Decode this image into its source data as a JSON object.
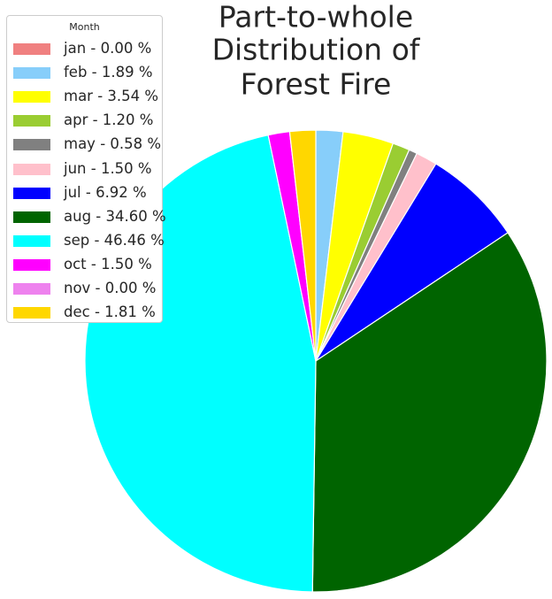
{
  "chart_data": {
    "type": "pie",
    "title_lines": [
      "Part-to-whole",
      "Distribution of",
      "Forest Fire"
    ],
    "legend": {
      "title": "Month",
      "placement": "top-left"
    },
    "start_angle_deg": 90,
    "direction": "clockwise",
    "slices": [
      {
        "label": "jan",
        "value": 0.0,
        "color": "#f08080",
        "legend_text": "jan - 0.00 %"
      },
      {
        "label": "feb",
        "value": 1.89,
        "color": "#87cefa",
        "legend_text": "feb - 1.89 %"
      },
      {
        "label": "mar",
        "value": 3.54,
        "color": "#ffff00",
        "legend_text": "mar - 3.54 %"
      },
      {
        "label": "apr",
        "value": 1.2,
        "color": "#9acd32",
        "legend_text": "apr - 1.20 %"
      },
      {
        "label": "may",
        "value": 0.58,
        "color": "#808080",
        "legend_text": "may - 0.58 %"
      },
      {
        "label": "jun",
        "value": 1.5,
        "color": "#ffc0cb",
        "legend_text": "jun - 1.50 %"
      },
      {
        "label": "jul",
        "value": 6.92,
        "color": "#0000ff",
        "legend_text": "jul - 6.92 %"
      },
      {
        "label": "aug",
        "value": 34.6,
        "color": "#006400",
        "legend_text": "aug - 34.60 %"
      },
      {
        "label": "sep",
        "value": 46.46,
        "color": "#00ffff",
        "legend_text": "sep - 46.46 %"
      },
      {
        "label": "oct",
        "value": 1.5,
        "color": "#ff00ff",
        "legend_text": "oct - 1.50 %"
      },
      {
        "label": "nov",
        "value": 0.0,
        "color": "#ee82ee",
        "legend_text": "nov - 0.00 %"
      },
      {
        "label": "dec",
        "value": 1.81,
        "color": "#ffd700",
        "legend_text": "dec - 1.81 %"
      }
    ]
  }
}
